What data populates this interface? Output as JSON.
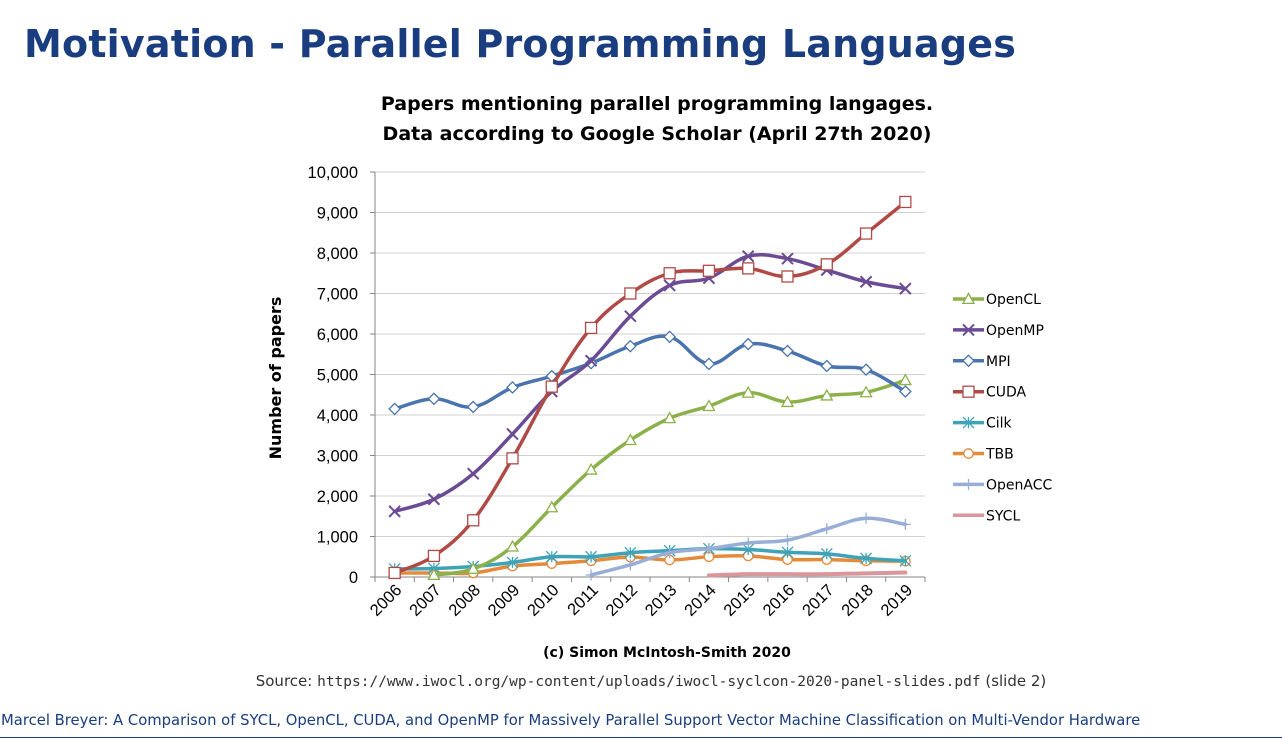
{
  "slide": {
    "title": "Motivation - Parallel Programming Languages",
    "source_prefix": "Source:",
    "source_url": "https://www.iwocl.org/wp-content/uploads/iwocl-syclcon-2020-panel-slides.pdf",
    "source_suffix": "(slide 2)",
    "footer": "Marcel Breyer: A Comparison of SYCL, OpenCL, CUDA, and OpenMP for Massively Parallel Support Vector Machine Classification on Multi-Vendor Hardware"
  },
  "chart_data": {
    "type": "line",
    "title": "Papers mentioning parallel programming langages. Data according to Google Scholar (April 27th 2020)",
    "title_lines": [
      "Papers mentioning parallel programming langages.",
      "Data according to Google Scholar (April 27th 2020)"
    ],
    "ylabel": "Number of papers",
    "xlabel": "",
    "credit": "(c) Simon McIntosh-Smith 2020",
    "ylim": [
      0,
      10000
    ],
    "yticks": [
      0,
      1000,
      2000,
      3000,
      4000,
      5000,
      6000,
      7000,
      8000,
      9000,
      10000
    ],
    "ytick_labels": [
      "0",
      "1,000",
      "2,000",
      "3,000",
      "4,000",
      "5,000",
      "6,000",
      "7,000",
      "8,000",
      "9,000",
      "10,000"
    ],
    "categories": [
      "2006",
      "2007",
      "2008",
      "2009",
      "2010",
      "2011",
      "2012",
      "2013",
      "2014",
      "2015",
      "2016",
      "2017",
      "2018",
      "2019"
    ],
    "grid": true,
    "legend_position": "right",
    "series": [
      {
        "name": "OpenCL",
        "color": "#8cb04a",
        "marker": "triangle",
        "values": [
          null,
          50,
          200,
          750,
          1720,
          2650,
          3380,
          3920,
          4220,
          4550,
          4320,
          4480,
          4560,
          4860
        ]
      },
      {
        "name": "OpenMP",
        "color": "#6b4c94",
        "marker": "x",
        "values": [
          1620,
          1920,
          2550,
          3530,
          4580,
          5340,
          6440,
          7200,
          7380,
          7920,
          7860,
          7580,
          7290,
          7120
        ]
      },
      {
        "name": "MPI",
        "color": "#4a74ad",
        "marker": "diamond",
        "values": [
          4150,
          4400,
          4200,
          4680,
          4960,
          5280,
          5700,
          5930,
          5260,
          5750,
          5580,
          5210,
          5120,
          4580
        ]
      },
      {
        "name": "CUDA",
        "color": "#b04a47",
        "marker": "square",
        "values": [
          100,
          520,
          1400,
          2930,
          4700,
          6150,
          7000,
          7500,
          7560,
          7620,
          7420,
          7720,
          8480,
          9260
        ]
      },
      {
        "name": "Cilk",
        "color": "#3ea3b6",
        "marker": "star",
        "values": [
          200,
          210,
          260,
          360,
          500,
          500,
          600,
          650,
          700,
          680,
          610,
          570,
          460,
          400
        ]
      },
      {
        "name": "TBB",
        "color": "#e48b3b",
        "marker": "circle",
        "values": [
          100,
          100,
          100,
          270,
          330,
          400,
          490,
          420,
          500,
          520,
          430,
          430,
          400,
          390
        ]
      },
      {
        "name": "OpenACC",
        "color": "#98aed6",
        "marker": "plus",
        "values": [
          null,
          null,
          null,
          null,
          null,
          50,
          300,
          600,
          700,
          840,
          910,
          1190,
          1450,
          1300
        ]
      },
      {
        "name": "SYCL",
        "color": "#d9969b",
        "marker": "none",
        "values": [
          null,
          null,
          null,
          null,
          null,
          null,
          null,
          null,
          40,
          70,
          70,
          70,
          90,
          110
        ]
      }
    ]
  }
}
